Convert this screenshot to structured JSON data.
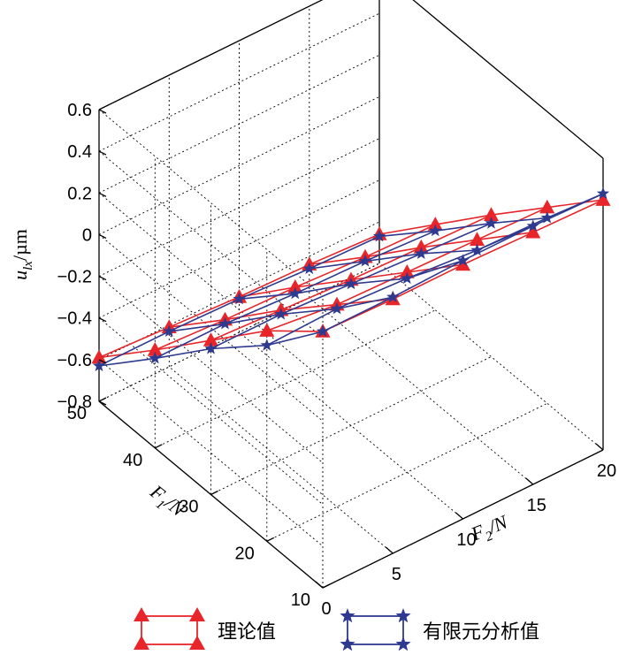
{
  "chart_data": {
    "type": "line",
    "projection": "3d-wireframe",
    "axes": {
      "z": {
        "label_main": "u",
        "label_sub": "lx",
        "label_unit": "/µm",
        "range": [
          -0.8,
          0.6
        ],
        "ticks": [
          "0.6",
          "0.4",
          "0.2",
          "0",
          "−0.2",
          "−0.4",
          "−0.6",
          "−0.8"
        ]
      },
      "f1": {
        "label_main": "F",
        "label_sub": "1",
        "label_unit": "/N",
        "range": [
          10,
          50
        ],
        "ticks": [
          "50",
          "40",
          "30",
          "20",
          "10"
        ]
      },
      "f2": {
        "label_main": "F",
        "label_sub": "2",
        "label_unit": "/N",
        "range": [
          0,
          20
        ],
        "ticks": [
          "0",
          "5",
          "10",
          "15",
          "20"
        ]
      }
    },
    "grid": true,
    "f1_values": [
      50,
      40,
      30,
      20,
      10
    ],
    "f2_values": [
      0,
      5,
      10,
      15,
      20
    ],
    "series": [
      {
        "name": "理论值",
        "color": "#e8262a",
        "marker": "triangle",
        "values": [
          [
            -0.59,
            -0.61,
            -0.63,
            -0.64,
            -0.66
          ],
          [
            -0.33,
            -0.35,
            -0.36,
            -0.38,
            -0.39
          ],
          [
            -0.06,
            -0.08,
            -0.1,
            -0.11,
            -0.12
          ],
          [
            0.21,
            0.17,
            0.16,
            0.15,
            0.14
          ],
          [
            0.43,
            0.42,
            0.42,
            0.41,
            0.4
          ]
        ]
      },
      {
        "name": "有限元分析值",
        "color": "#2e3a8f",
        "marker": "star",
        "values": [
          [
            -0.63,
            -0.63,
            -0.64,
            -0.66,
            -0.67
          ],
          [
            -0.37,
            -0.37,
            -0.39,
            -0.4,
            -0.42
          ],
          [
            -0.1,
            -0.1,
            -0.12,
            -0.14,
            -0.16
          ],
          [
            0.14,
            0.15,
            0.13,
            0.1,
            0.09
          ],
          [
            0.43,
            0.43,
            0.44,
            0.44,
            0.43
          ]
        ]
      }
    ],
    "legend": {
      "placement": "bottom"
    }
  }
}
